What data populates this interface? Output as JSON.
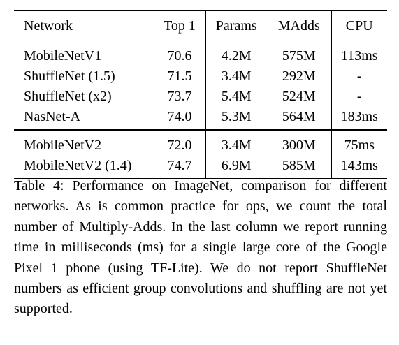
{
  "table": {
    "headers": [
      "Network",
      "Top 1",
      "Params",
      "MAdds",
      "CPU"
    ],
    "groups": [
      {
        "rows": [
          {
            "cells": [
              "MobileNetV1",
              "70.6",
              "4.2M",
              "575M",
              "113ms"
            ],
            "bold": [
              false,
              false,
              false,
              false,
              false
            ]
          },
          {
            "cells": [
              "ShuffleNet (1.5)",
              "71.5",
              "3.4M",
              "292M",
              "-"
            ],
            "bold": [
              false,
              false,
              true,
              false,
              false
            ]
          },
          {
            "cells": [
              "ShuffleNet (x2)",
              "73.7",
              "5.4M",
              "524M",
              "-"
            ],
            "bold": [
              false,
              false,
              false,
              false,
              false
            ]
          },
          {
            "cells": [
              "NasNet-A",
              "74.0",
              "5.3M",
              "564M",
              "183ms"
            ],
            "bold": [
              false,
              false,
              false,
              false,
              false
            ]
          }
        ]
      },
      {
        "rows": [
          {
            "cells": [
              "MobileNetV2",
              "72.0",
              "3.4M",
              "300M",
              "75ms"
            ],
            "bold": [
              false,
              true,
              true,
              true,
              true
            ]
          },
          {
            "cells": [
              "MobileNetV2 (1.4)",
              "74.7",
              "6.9M",
              "585M",
              "143ms"
            ],
            "bold": [
              false,
              true,
              false,
              false,
              true
            ]
          }
        ]
      }
    ]
  },
  "caption": "Table 4: Performance on ImageNet, comparison for dif­ferent networks.  As is common practice for ops, we count the total number of Multiply-Adds.  In the last column we report running time in milliseconds (ms) for a single large core of the Google Pixel 1 phone (using TF-Lite).  We do not report ShuffleNet numbers as effi­cient group convolutions and shuffling are not yet sup­ported."
}
